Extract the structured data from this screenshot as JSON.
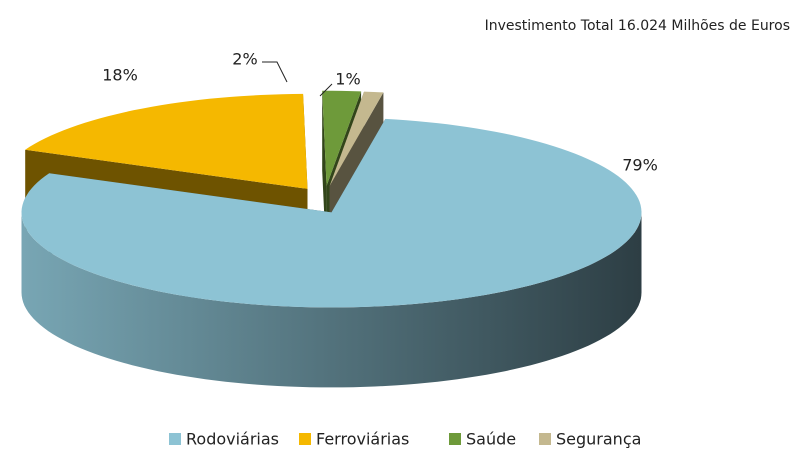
{
  "chart_data": {
    "type": "pie",
    "title": "Investimento Total 16.024 Milhões de Euros",
    "categories": [
      "Rodoviárias",
      "Ferroviárias",
      "Saúde",
      "Segurança"
    ],
    "values": [
      79,
      18,
      2,
      1
    ],
    "value_labels": [
      "79%",
      "18%",
      "2%",
      "1%"
    ],
    "colors": [
      "#8dc3d4",
      "#f5b800",
      "#6e9a3a",
      "#c4b88f"
    ],
    "legend": "bottom"
  }
}
